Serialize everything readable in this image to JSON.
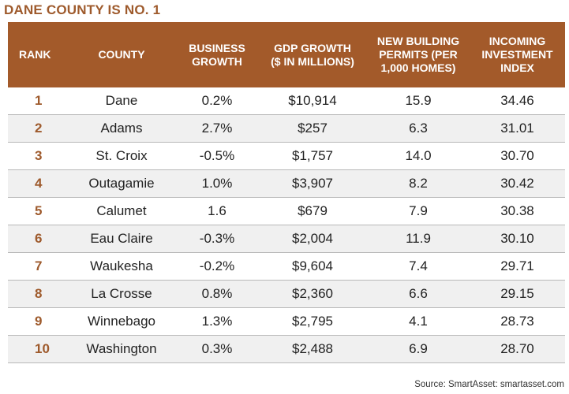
{
  "title": "DANE COUNTY IS NO. 1",
  "headers": {
    "rank": "RANK",
    "county": "COUNTY",
    "business": "BUSINESS\nGROWTH",
    "gdp": "GDP GROWTH\n($ IN MILLIONS)",
    "permits": "NEW BUILDING\nPERMITS (PER\n1,000 HOMES)",
    "investment": "INCOMING\nINVESTMENT\nINDEX"
  },
  "rows": [
    {
      "rank": "1",
      "county": "Dane",
      "business": "0.2%",
      "gdp": "$10,914",
      "permits": "15.9",
      "investment": "34.46"
    },
    {
      "rank": "2",
      "county": "Adams",
      "business": "2.7%",
      "gdp": "$257",
      "permits": "6.3",
      "investment": "31.01"
    },
    {
      "rank": "3",
      "county": "St. Croix",
      "business": "-0.5%",
      "gdp": "$1,757",
      "permits": "14.0",
      "investment": "30.70"
    },
    {
      "rank": "4",
      "county": "Outagamie",
      "business": "1.0%",
      "gdp": "$3,907",
      "permits": "8.2",
      "investment": "30.42"
    },
    {
      "rank": "5",
      "county": "Calumet",
      "business": "1.6",
      "gdp": "$679",
      "permits": "7.9",
      "investment": "30.38"
    },
    {
      "rank": "6",
      "county": "Eau Claire",
      "business": "-0.3%",
      "gdp": "$2,004",
      "permits": "11.9",
      "investment": "30.10"
    },
    {
      "rank": "7",
      "county": "Waukesha",
      "business": "-0.2%",
      "gdp": "$9,604",
      "permits": "7.4",
      "investment": "29.71"
    },
    {
      "rank": "8",
      "county": "La Crosse",
      "business": "0.8%",
      "gdp": "$2,360",
      "permits": "6.6",
      "investment": "29.15"
    },
    {
      "rank": "9",
      "county": "Winnebago",
      "business": "1.3%",
      "gdp": "$2,795",
      "permits": "4.1",
      "investment": "28.73"
    },
    {
      "rank": "10",
      "county": "Washington",
      "business": "0.3%",
      "gdp": "$2,488",
      "permits": "6.9",
      "investment": "28.70"
    }
  ],
  "source": "Source: SmartAsset: smartasset.com",
  "colors": {
    "accent": "#a35a2a",
    "title": "#9e5a2c",
    "stripe": "#f0f0f0"
  }
}
